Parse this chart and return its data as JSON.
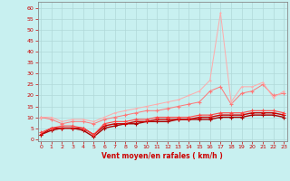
{
  "title": "",
  "xlabel": "Vent moyen/en rafales ( km/h )",
  "ylabel": "",
  "background_color": "#c8f0f0",
  "grid_color": "#b0d8d8",
  "x_ticks": [
    0,
    1,
    2,
    3,
    4,
    5,
    6,
    7,
    8,
    9,
    10,
    11,
    12,
    13,
    14,
    15,
    16,
    17,
    18,
    19,
    20,
    21,
    22,
    23
  ],
  "y_ticks": [
    0,
    5,
    10,
    15,
    20,
    25,
    30,
    35,
    40,
    45,
    50,
    55,
    60
  ],
  "ylim": [
    -1,
    63
  ],
  "xlim": [
    -0.3,
    23.3
  ],
  "series": [
    {
      "color": "#aa0000",
      "marker": "+",
      "markersize": 3.0,
      "linewidth": 1.0,
      "y": [
        2,
        4,
        5,
        5,
        4,
        1,
        5,
        6,
        7,
        7,
        8,
        8,
        8,
        9,
        9,
        9,
        9,
        10,
        10,
        10,
        11,
        11,
        11,
        10
      ]
    },
    {
      "color": "#cc0000",
      "marker": "+",
      "markersize": 3.0,
      "linewidth": 1.0,
      "y": [
        2,
        5,
        5,
        5,
        5,
        2,
        6,
        7,
        7,
        8,
        8,
        9,
        9,
        9,
        9,
        10,
        10,
        11,
        11,
        11,
        12,
        12,
        12,
        11
      ]
    },
    {
      "color": "#ff4444",
      "marker": "+",
      "markersize": 2.5,
      "linewidth": 0.8,
      "y": [
        3,
        5,
        6,
        6,
        5,
        2,
        7,
        8,
        8,
        9,
        9,
        10,
        10,
        10,
        10,
        11,
        11,
        12,
        12,
        12,
        13,
        13,
        13,
        12
      ]
    },
    {
      "color": "#ff7777",
      "marker": "+",
      "markersize": 2.5,
      "linewidth": 0.7,
      "y": [
        10,
        9,
        7,
        8,
        8,
        7,
        9,
        10,
        11,
        12,
        13,
        13,
        14,
        15,
        16,
        17,
        22,
        24,
        16,
        21,
        22,
        25,
        20,
        21
      ]
    },
    {
      "color": "#ffaaaa",
      "marker": "+",
      "markersize": 2.0,
      "linewidth": 0.7,
      "y": [
        10,
        10,
        8,
        9,
        9,
        8,
        10,
        12,
        13,
        14,
        15,
        16,
        17,
        18,
        20,
        22,
        27,
        58,
        17,
        24,
        24,
        26,
        19,
        22
      ]
    }
  ]
}
